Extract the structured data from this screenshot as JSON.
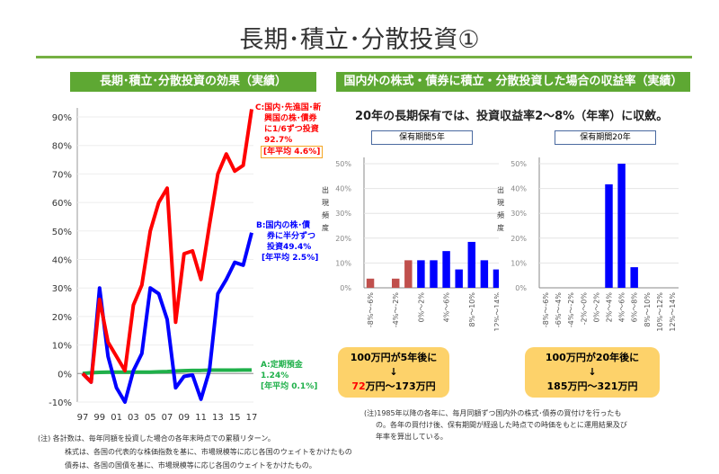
{
  "title": "長期･積立･分散投資①",
  "left_header": "長期･積立･分散投資の効果（実績）",
  "right_header": "国内外の株式・債券に積立・分散投資した場合の収益率（実績）",
  "subtitle": "20年の長期保有では、投資収益率2～8%（年率）に収斂。",
  "colors": {
    "accent": "#5ea833",
    "red": "#ff0000",
    "blue": "#0000ff",
    "green": "#1fb04a",
    "neg_bar": "#c0504d",
    "result_box": "#fdd26a"
  },
  "labels": {
    "C": [
      "C:国内･先進国･新",
      "興国の株･債券",
      "に1/6ずつ投資",
      "92.7%",
      "[年平均 4.6%]"
    ],
    "B": [
      "B:国内の株･債",
      "券に半分ずつ",
      "投資49.4%",
      "[年平均 2.5%]"
    ],
    "A": [
      "A:定期預金",
      "1.24%",
      "[年平均 0.1%]"
    ]
  },
  "chart_data": [
    {
      "type": "line",
      "x": [
        1997,
        1998,
        1999,
        2000,
        2001,
        2002,
        2003,
        2004,
        2005,
        2006,
        2007,
        2008,
        2009,
        2010,
        2011,
        2012,
        2013,
        2014,
        2015,
        2016,
        2017
      ],
      "xticks": [
        "97",
        "99",
        "01",
        "03",
        "05",
        "07",
        "09",
        "11",
        "13",
        "15",
        "17"
      ],
      "yticks": [
        "90%",
        "80%",
        "70%",
        "60%",
        "50%",
        "40%",
        "30%",
        "20%",
        "10%",
        "0%",
        "-10%"
      ],
      "ylim": [
        -10,
        92
      ],
      "grid": true,
      "series": [
        {
          "name": "C",
          "color": "#ff0000",
          "values": [
            0,
            -3,
            26,
            11,
            6,
            1,
            24,
            31,
            50,
            60,
            65,
            18,
            42,
            43,
            33,
            52,
            70,
            77,
            71,
            73,
            92.7
          ]
        },
        {
          "name": "B",
          "color": "#0000ff",
          "values": [
            0,
            -3,
            30,
            6,
            -5,
            -10,
            1,
            7,
            30,
            28,
            19,
            -5,
            -1,
            -0.5,
            -9,
            1,
            28,
            33,
            39,
            38,
            49.4
          ]
        },
        {
          "name": "A",
          "color": "#1fb04a",
          "values": [
            0,
            0.3,
            0.4,
            0.5,
            0.5,
            0.5,
            0.5,
            0.5,
            0.5,
            0.6,
            0.7,
            0.9,
            1.0,
            1.1,
            1.1,
            1.2,
            1.2,
            1.2,
            1.2,
            1.24,
            1.24
          ]
        }
      ]
    },
    {
      "type": "bar",
      "title": "保有期間5年",
      "ylabel": "出現頻度",
      "ylim": [
        0,
        50
      ],
      "yticks": [
        "50%",
        "40%",
        "30%",
        "20%",
        "10%",
        "0%"
      ],
      "categories": [
        "-8%～-6%",
        "-6%～-4%",
        "-4%～-2%",
        "-2%～0%",
        "0%～2%",
        "2%～4%",
        "4%～6%",
        "6%～8%",
        "8%～10%",
        "10%～12%",
        "12%～14%"
      ],
      "shown_labels": [
        "-8%～-6%",
        "",
        "-4%～-2%",
        "",
        "0%～2%",
        "",
        "4%～6%",
        "",
        "8%～10%",
        "",
        "12%～14%"
      ],
      "values": [
        3.7,
        0,
        3.7,
        11.1,
        11.1,
        11.1,
        14.8,
        7.4,
        18.5,
        11.1,
        7.4
      ]
    },
    {
      "type": "bar",
      "title": "保有期間20年",
      "ylabel": "出現頻度",
      "ylim": [
        0,
        50
      ],
      "yticks": [
        "50%",
        "40%",
        "30%",
        "20%",
        "10%",
        "0%"
      ],
      "categories": [
        "-8%～-6%",
        "-6%～-4%",
        "-4%～-2%",
        "-2%～0%",
        "0%～2%",
        "2%～4%",
        "4%～6%",
        "6%～8%",
        "8%～10%",
        "10%～12%",
        "12%～14%"
      ],
      "shown_labels": [
        "-8%～-6%",
        "-6%～-4%",
        "-4%～-2%",
        "-2%～0%",
        "0%～2%",
        "2%～4%",
        "4%～6%",
        "6%～8%",
        "8%～10%",
        "10%～12%",
        "12%～14%"
      ],
      "values": [
        0,
        0,
        0,
        0,
        0,
        41.7,
        50,
        8.3,
        0,
        0,
        0
      ]
    }
  ],
  "results": [
    {
      "line1": "100万円が5年後に",
      "arrow": "↓",
      "low": "72",
      "rest": "万円～173万円"
    },
    {
      "line1": "100万円が20年後に",
      "arrow": "↓",
      "low": "185",
      "rest": "万円～321万円"
    }
  ],
  "note_right": [
    "(注)1985年以降の各年に、毎月同額ずつ国内外の株式･債券の買付けを行ったも",
    "の。各年の買付け後、保有期間が経過した時点での時価をもとに運用結果及び",
    "年率を算出している。"
  ],
  "note_left": [
    "(注)  各計数は、毎年同額を投資した場合の各年末時点での累積リターン。",
    "株式は、各国の代表的な株価指数を基に、市場規模等に応じ各国のウェイトをかけたもの",
    "債券は、各国の国債を基に、市場規模等に応じ各国のウェイトをかけたもの。"
  ]
}
